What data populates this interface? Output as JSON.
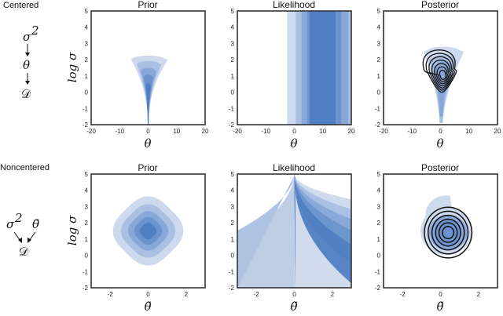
{
  "rows": [
    {
      "label": "Centered",
      "graph": {
        "top": "σ",
        "top_sup": "2",
        "mid": "θ",
        "bottom": "𝒟"
      },
      "panels": [
        {
          "title": "Prior"
        },
        {
          "title": "Likelihood"
        },
        {
          "title": "Posterior"
        }
      ],
      "xlabel": "θ",
      "ylabel": "log σ",
      "xlim": [
        -20,
        20
      ],
      "ylim": [
        -2,
        5
      ],
      "xticks": [
        "-20",
        "-10",
        "0",
        "10",
        "20"
      ],
      "yticks": [
        "-2",
        "-1",
        "0",
        "1",
        "2",
        "3",
        "4",
        "5"
      ]
    },
    {
      "label": "Noncentered",
      "graph": {
        "left": "σ",
        "left_sup": "2",
        "right": "θ̃",
        "bottom": "𝒟"
      },
      "panels": [
        {
          "title": "Prior"
        },
        {
          "title": "Likelihood"
        },
        {
          "title": "Posterior"
        }
      ],
      "xlabel": "θ̃",
      "ylabel": "log σ",
      "xlim": [
        -3,
        3
      ],
      "ylim": [
        -2,
        5
      ],
      "xticks": [
        "-2",
        "0",
        "2"
      ],
      "yticks": [
        "-2",
        "-1",
        "0",
        "1",
        "2",
        "3",
        "4",
        "5"
      ]
    }
  ],
  "chart_data": [
    {
      "type": "contour",
      "row": "Centered",
      "title": "Prior",
      "xlabel": "θ",
      "ylabel": "log σ",
      "xlim": [
        -20,
        20
      ],
      "ylim": [
        -2,
        5
      ],
      "fill_colors": [
        "#cdd9ed",
        "#a9c0e3",
        "#87a8d9",
        "#6b93cd",
        "#4f7fc2"
      ],
      "levels": [
        {
          "y": [
            -2,
            2
          ],
          "halfwidth_at_top": 6.0
        },
        {
          "y": [
            -2,
            1.7
          ],
          "halfwidth_at_top": 4.0
        },
        {
          "y": [
            -2,
            1.3
          ],
          "halfwidth_at_top": 2.6
        },
        {
          "y": [
            -2,
            0.9
          ],
          "halfwidth_at_top": 1.6
        },
        {
          "y": [
            -2,
            0.4
          ],
          "halfwidth_at_top": 0.8
        }
      ]
    },
    {
      "type": "contour",
      "row": "Centered",
      "title": "Likelihood",
      "xlabel": "θ",
      "ylabel": "log σ",
      "xlim": [
        -20,
        20
      ],
      "ylim": [
        -2,
        5
      ],
      "fill_colors": [
        "#cdd9ed",
        "#a9c0e3",
        "#87a8d9",
        "#6b93cd",
        "#4f7fc2"
      ],
      "bands": [
        {
          "x": [
            -2.5,
            20
          ]
        },
        {
          "x": [
            0.5,
            20
          ]
        },
        {
          "x": [
            2.5,
            19
          ]
        },
        {
          "x": [
            4.5,
            16.5
          ]
        },
        {
          "x": [
            5.5,
            14.5
          ]
        }
      ]
    },
    {
      "type": "contour",
      "row": "Centered",
      "title": "Posterior",
      "xlabel": "θ",
      "ylabel": "log σ",
      "xlim": [
        -20,
        20
      ],
      "ylim": [
        -2,
        5
      ],
      "fill_colors": [
        "#cdd9ed",
        "#a9c0e3",
        "#87a8d9",
        "#6b93cd",
        "#4f7fc2"
      ],
      "line_color": "#111111",
      "contour_lines": 7,
      "mode": [
        1,
        1
      ]
    },
    {
      "type": "contour",
      "row": "Noncentered",
      "title": "Prior",
      "xlabel": "θ̃",
      "ylabel": "log σ",
      "xlim": [
        -3,
        3
      ],
      "ylim": [
        -2,
        5
      ],
      "fill_colors": [
        "#cdd9ed",
        "#a9c0e3",
        "#87a8d9",
        "#6b93cd",
        "#4f7fc2"
      ],
      "center": [
        0,
        1.5
      ],
      "radii": [
        1.75,
        1.35,
        1.0,
        0.7,
        0.42
      ]
    },
    {
      "type": "contour",
      "row": "Noncentered",
      "title": "Likelihood",
      "xlabel": "θ̃",
      "ylabel": "log σ",
      "xlim": [
        -3,
        3
      ],
      "ylim": [
        -2,
        5
      ],
      "fill_colors": [
        "#cdd9ed",
        "#a9c0e3",
        "#87a8d9",
        "#6b93cd",
        "#4f7fc2"
      ],
      "cusp": [
        0,
        5
      ]
    },
    {
      "type": "contour",
      "row": "Noncentered",
      "title": "Posterior",
      "xlabel": "θ̃",
      "ylabel": "log σ",
      "xlim": [
        -3,
        3
      ],
      "ylim": [
        -2,
        5
      ],
      "fill_colors": [
        "#cdd9ed",
        "#a9c0e3",
        "#87a8d9",
        "#6b93cd",
        "#4f7fc2"
      ],
      "line_color": "#111111",
      "center": [
        0.4,
        1.4
      ],
      "contour_radii": [
        1.25,
        1.05,
        0.85,
        0.66,
        0.48,
        0.3
      ]
    }
  ]
}
